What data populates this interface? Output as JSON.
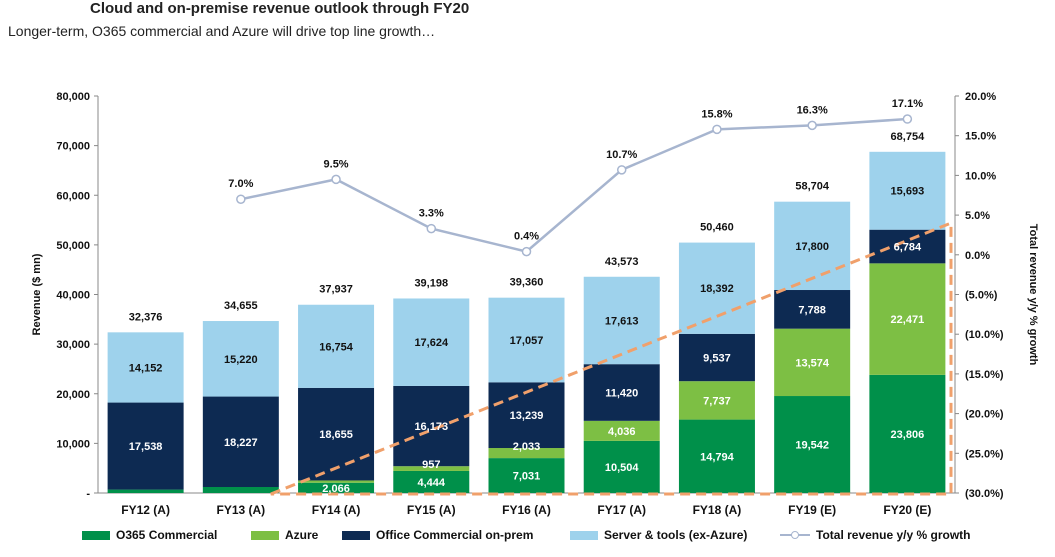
{
  "header": {
    "title": "Cloud and on-premise revenue outlook through FY20",
    "subtitle": "Longer-term, O365 commercial and Azure will drive top line growth…"
  },
  "colors": {
    "o365": "#00904a",
    "azure": "#7dbf44",
    "office_onprem": "#0d2a52",
    "server_tools": "#9ed2ec",
    "growth_line": "#a7b5cf",
    "trend_dash": "#f0a06b"
  },
  "chart_data": {
    "type": "bar",
    "stacked": true,
    "title": "Cloud and on-premise revenue outlook through FY20",
    "ylabel": "Revenue ($ mn)",
    "y2label": "Total revenue y/y % growth",
    "ylim": [
      0,
      80000
    ],
    "y2lim": [
      -30,
      20
    ],
    "y_ticks": [
      "-",
      "10,000",
      "20,000",
      "30,000",
      "40,000",
      "50,000",
      "60,000",
      "70,000",
      "80,000"
    ],
    "y2_ticks": [
      "(30.0%)",
      "(25.0%)",
      "(20.0%)",
      "(15.0%)",
      "(10.0%)",
      "(5.0%)",
      "0.0%",
      "5.0%",
      "10.0%",
      "15.0%",
      "20.0%"
    ],
    "categories": [
      "FY12 (A)",
      "FY13 (A)",
      "FY14 (A)",
      "FY15 (A)",
      "FY16 (A)",
      "FY17 (A)",
      "FY18 (A)",
      "FY19 (E)",
      "FY20 (E)"
    ],
    "series": [
      {
        "name": "O365 Commercial",
        "values": [
          686,
          1208,
          2066,
          4444,
          7031,
          10504,
          14794,
          19542,
          23806
        ],
        "labels": [
          "",
          "",
          "2,066",
          "4,444",
          "7,031",
          "10,504",
          "14,794",
          "19,542",
          "23,806"
        ]
      },
      {
        "name": "Azure",
        "values": [
          0,
          0,
          462,
          957,
          2033,
          4036,
          7737,
          13574,
          22471
        ],
        "labels": [
          "",
          "",
          "",
          "957",
          "2,033",
          "4,036",
          "7,737",
          "13,574",
          "22,471"
        ]
      },
      {
        "name": "Office Commercial on-prem",
        "values": [
          17538,
          18227,
          18655,
          16173,
          13239,
          11420,
          9537,
          7788,
          6784
        ],
        "labels": [
          "17,538",
          "18,227",
          "18,655",
          "16,173",
          "13,239",
          "11,420",
          "9,537",
          "7,788",
          "6,784"
        ]
      },
      {
        "name": "Server & tools (ex-Azure)",
        "values": [
          14152,
          15220,
          16754,
          17624,
          17057,
          17613,
          18392,
          17800,
          15693
        ],
        "labels": [
          "14,152",
          "15,220",
          "16,754",
          "17,624",
          "17,057",
          "17,613",
          "18,392",
          "17,800",
          "15,693"
        ]
      }
    ],
    "totals": [
      32376,
      34655,
      37937,
      39198,
      39360,
      43573,
      50460,
      58704,
      68754
    ],
    "total_labels": [
      "32,376",
      "34,655",
      "37,937",
      "39,198",
      "39,360",
      "43,573",
      "50,460",
      "58,704",
      "68,754"
    ],
    "growth": {
      "name": "Total revenue y/y % growth",
      "values": [
        null,
        7.0,
        9.5,
        3.3,
        0.4,
        10.7,
        15.8,
        16.3,
        17.1
      ],
      "labels": [
        "",
        "7.0%",
        "9.5%",
        "3.3%",
        "0.4%",
        "10.7%",
        "15.8%",
        "16.3%",
        "17.1%"
      ]
    },
    "legend": [
      "O365 Commercial",
      "Azure",
      "Office Commercial on-prem",
      "Server & tools (ex-Azure)",
      "Total revenue y/y % growth"
    ]
  }
}
